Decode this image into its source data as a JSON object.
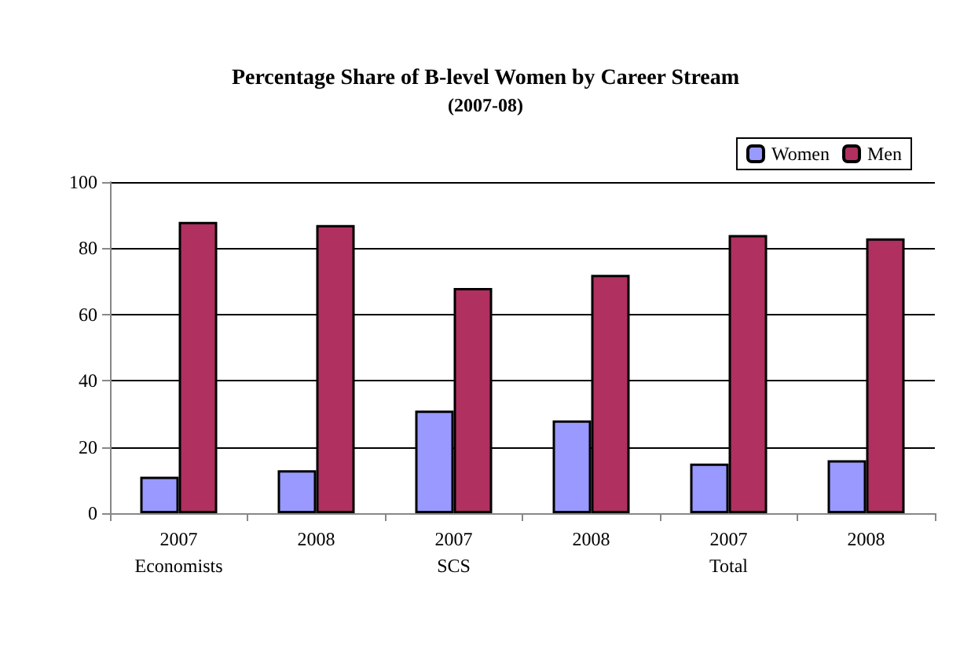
{
  "chart_data": {
    "type": "bar",
    "title": "Percentage Share of B-level Women by Career Stream",
    "subtitle": "(2007-08)",
    "categories": [
      "2007\nEconomists",
      "2008",
      "2007\nSCS",
      "2008",
      "2007\nTotal",
      "2008"
    ],
    "series": [
      {
        "name": "Women",
        "color": "#9999ff",
        "values": [
          11,
          13,
          31,
          28,
          15,
          16
        ]
      },
      {
        "name": "Men",
        "color": "#b03060",
        "values": [
          88,
          87,
          68,
          72,
          84,
          83
        ]
      }
    ],
    "ylim": [
      0,
      100
    ],
    "yticks": [
      0,
      20,
      40,
      60,
      80,
      100
    ],
    "grid": "y",
    "legend": "top right"
  }
}
